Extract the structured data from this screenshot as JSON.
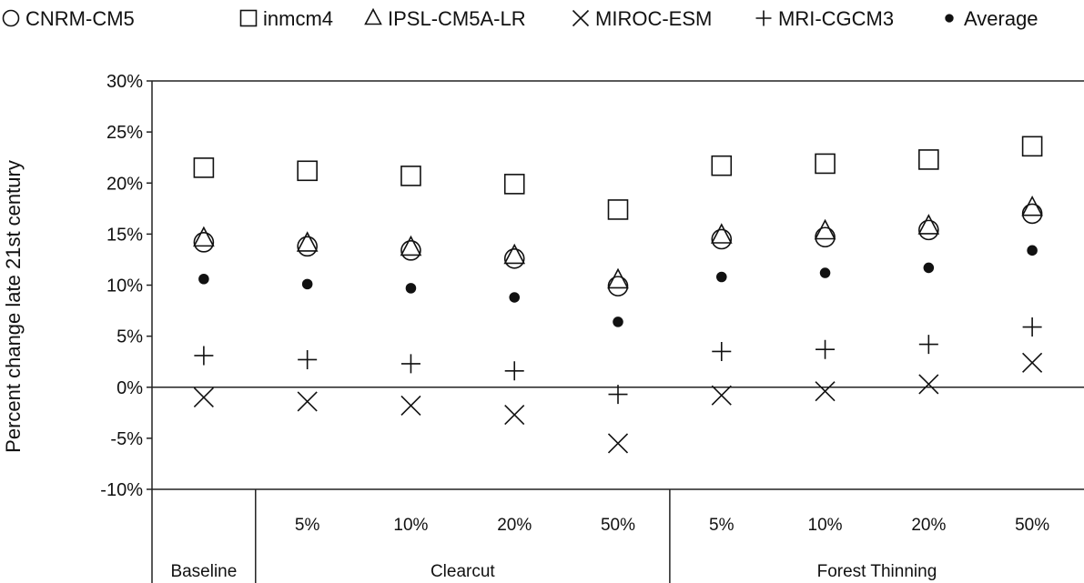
{
  "chart_data": {
    "type": "scatter",
    "title": "",
    "ylabel": "Percent change late 21st century",
    "ylim": [
      -10,
      30
    ],
    "yticks": [
      "30%",
      "25%",
      "20%",
      "15%",
      "10%",
      "5%",
      "0%",
      "-5%",
      "-10%"
    ],
    "categories": [
      "Baseline",
      "5%",
      "10%",
      "20%",
      "50%",
      "5%",
      "10%",
      "20%",
      "50%"
    ],
    "groups": [
      {
        "label": "Baseline",
        "span": [
          0,
          0
        ]
      },
      {
        "label": "Clearcut",
        "span": [
          1,
          4
        ]
      },
      {
        "label": "Forest Thinning",
        "span": [
          5,
          8
        ]
      }
    ],
    "sub_labels": [
      "",
      "5%",
      "10%",
      "20%",
      "50%",
      "5%",
      "10%",
      "20%",
      "50%"
    ],
    "legend_position": "top",
    "series": [
      {
        "name": "CNRM-CM5",
        "marker": "open-circle",
        "values": [
          14.2,
          13.8,
          13.4,
          12.6,
          9.9,
          14.5,
          14.7,
          15.4,
          17.0
        ]
      },
      {
        "name": "inmcm4",
        "marker": "open-square",
        "values": [
          21.5,
          21.2,
          20.7,
          19.9,
          17.4,
          21.7,
          21.9,
          22.3,
          23.6
        ]
      },
      {
        "name": "IPSL-CM5A-LR",
        "marker": "open-triangle",
        "values": [
          14.6,
          14.1,
          13.7,
          12.9,
          10.5,
          14.9,
          15.3,
          15.8,
          17.6
        ]
      },
      {
        "name": "MIROC-ESM",
        "marker": "x",
        "values": [
          -1.0,
          -1.4,
          -1.8,
          -2.7,
          -5.5,
          -0.8,
          -0.4,
          0.3,
          2.4
        ]
      },
      {
        "name": "MRI-CGCM3",
        "marker": "plus",
        "values": [
          3.1,
          2.7,
          2.3,
          1.6,
          -0.7,
          3.5,
          3.7,
          4.2,
          5.9
        ]
      },
      {
        "name": "Average",
        "marker": "filled-circle",
        "values": [
          10.6,
          10.1,
          9.7,
          8.8,
          6.4,
          10.8,
          11.2,
          11.7,
          13.4
        ]
      }
    ]
  }
}
